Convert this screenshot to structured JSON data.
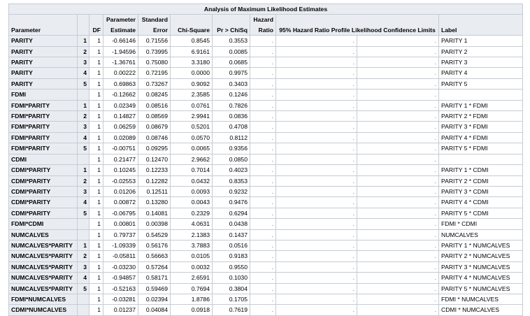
{
  "caption": "Analysis of Maximum Likelihood Estimates",
  "headers": {
    "parameter": "Parameter",
    "class": "",
    "df": "DF",
    "estimate_1": "Parameter",
    "estimate_2": "Estimate",
    "stderr_1": "Standard",
    "stderr_2": "Error",
    "chisq": "Chi-Square",
    "prob": "Pr > ChiSq",
    "hr_1": "Hazard",
    "hr_2": "Ratio",
    "ci": "95% Hazard Ratio Profile Likelihood Confidence Limits",
    "label": "Label"
  },
  "rows": [
    {
      "parameter": "PARITY",
      "cls": "1",
      "df": "1",
      "estimate": "-0.66146",
      "stderr": "0.71556",
      "chisq": "0.8545",
      "prob": "0.3553",
      "hr": ".",
      "lower": ".",
      "upper": ".",
      "label": "PARITY 1"
    },
    {
      "parameter": "PARITY",
      "cls": "2",
      "df": "1",
      "estimate": "-1.94596",
      "stderr": "0.73995",
      "chisq": "6.9161",
      "prob": "0.0085",
      "hr": ".",
      "lower": ".",
      "upper": ".",
      "label": "PARITY 2"
    },
    {
      "parameter": "PARITY",
      "cls": "3",
      "df": "1",
      "estimate": "-1.36761",
      "stderr": "0.75080",
      "chisq": "3.3180",
      "prob": "0.0685",
      "hr": ".",
      "lower": ".",
      "upper": ".",
      "label": "PARITY 3"
    },
    {
      "parameter": "PARITY",
      "cls": "4",
      "df": "1",
      "estimate": "0.00222",
      "stderr": "0.72195",
      "chisq": "0.0000",
      "prob": "0.9975",
      "hr": ".",
      "lower": ".",
      "upper": ".",
      "label": "PARITY 4"
    },
    {
      "parameter": "PARITY",
      "cls": "5",
      "df": "1",
      "estimate": "0.69863",
      "stderr": "0.73267",
      "chisq": "0.9092",
      "prob": "0.3403",
      "hr": ".",
      "lower": ".",
      "upper": ".",
      "label": "PARITY 5"
    },
    {
      "parameter": "FDMI",
      "cls": "",
      "df": "1",
      "estimate": "-0.12662",
      "stderr": "0.08245",
      "chisq": "2.3585",
      "prob": "0.1246",
      "hr": ".",
      "lower": ".",
      "upper": ".",
      "label": ""
    },
    {
      "parameter": "FDMI*PARITY",
      "cls": "1",
      "df": "1",
      "estimate": "0.02349",
      "stderr": "0.08516",
      "chisq": "0.0761",
      "prob": "0.7826",
      "hr": ".",
      "lower": ".",
      "upper": ".",
      "label": "PARITY 1 * FDMI"
    },
    {
      "parameter": "FDMI*PARITY",
      "cls": "2",
      "df": "1",
      "estimate": "0.14827",
      "stderr": "0.08569",
      "chisq": "2.9941",
      "prob": "0.0836",
      "hr": ".",
      "lower": ".",
      "upper": ".",
      "label": "PARITY 2 * FDMI"
    },
    {
      "parameter": "FDMI*PARITY",
      "cls": "3",
      "df": "1",
      "estimate": "0.06259",
      "stderr": "0.08679",
      "chisq": "0.5201",
      "prob": "0.4708",
      "hr": ".",
      "lower": ".",
      "upper": ".",
      "label": "PARITY 3 * FDMI"
    },
    {
      "parameter": "FDMI*PARITY",
      "cls": "4",
      "df": "1",
      "estimate": "0.02089",
      "stderr": "0.08746",
      "chisq": "0.0570",
      "prob": "0.8112",
      "hr": ".",
      "lower": ".",
      "upper": ".",
      "label": "PARITY 4 * FDMI"
    },
    {
      "parameter": "FDMI*PARITY",
      "cls": "5",
      "df": "1",
      "estimate": "-0.00751",
      "stderr": "0.09295",
      "chisq": "0.0065",
      "prob": "0.9356",
      "hr": ".",
      "lower": ".",
      "upper": ".",
      "label": "PARITY 5 * FDMI"
    },
    {
      "parameter": "CDMI",
      "cls": "",
      "df": "1",
      "estimate": "0.21477",
      "stderr": "0.12470",
      "chisq": "2.9662",
      "prob": "0.0850",
      "hr": ".",
      "lower": ".",
      "upper": ".",
      "label": ""
    },
    {
      "parameter": "CDMI*PARITY",
      "cls": "1",
      "df": "1",
      "estimate": "0.10245",
      "stderr": "0.12233",
      "chisq": "0.7014",
      "prob": "0.4023",
      "hr": ".",
      "lower": ".",
      "upper": ".",
      "label": "PARITY 1 * CDMI"
    },
    {
      "parameter": "CDMI*PARITY",
      "cls": "2",
      "df": "1",
      "estimate": "-0.02553",
      "stderr": "0.12282",
      "chisq": "0.0432",
      "prob": "0.8353",
      "hr": ".",
      "lower": ".",
      "upper": ".",
      "label": "PARITY 2 * CDMI"
    },
    {
      "parameter": "CDMI*PARITY",
      "cls": "3",
      "df": "1",
      "estimate": "0.01206",
      "stderr": "0.12511",
      "chisq": "0.0093",
      "prob": "0.9232",
      "hr": ".",
      "lower": ".",
      "upper": ".",
      "label": "PARITY 3 * CDMI"
    },
    {
      "parameter": "CDMI*PARITY",
      "cls": "4",
      "df": "1",
      "estimate": "0.00872",
      "stderr": "0.13280",
      "chisq": "0.0043",
      "prob": "0.9476",
      "hr": ".",
      "lower": ".",
      "upper": ".",
      "label": "PARITY 4 * CDMI"
    },
    {
      "parameter": "CDMI*PARITY",
      "cls": "5",
      "df": "1",
      "estimate": "-0.06795",
      "stderr": "0.14081",
      "chisq": "0.2329",
      "prob": "0.6294",
      "hr": ".",
      "lower": ".",
      "upper": ".",
      "label": "PARITY 5 * CDMI"
    },
    {
      "parameter": "FDMI*CDMI",
      "cls": "",
      "df": "1",
      "estimate": "0.00801",
      "stderr": "0.00398",
      "chisq": "4.0631",
      "prob": "0.0438",
      "hr": ".",
      "lower": ".",
      "upper": ".",
      "label": "FDMI * CDMI"
    },
    {
      "parameter": "NUMCALVES",
      "cls": "",
      "df": "1",
      "estimate": "0.79737",
      "stderr": "0.54529",
      "chisq": "2.1383",
      "prob": "0.1437",
      "hr": ".",
      "lower": ".",
      "upper": ".",
      "label": "NUMCALVES"
    },
    {
      "parameter": "NUMCALVES*PARITY",
      "cls": "1",
      "df": "1",
      "estimate": "-1.09339",
      "stderr": "0.56176",
      "chisq": "3.7883",
      "prob": "0.0516",
      "hr": ".",
      "lower": ".",
      "upper": ".",
      "label": "PARITY 1 * NUMCALVES"
    },
    {
      "parameter": "NUMCALVES*PARITY",
      "cls": "2",
      "df": "1",
      "estimate": "-0.05811",
      "stderr": "0.56663",
      "chisq": "0.0105",
      "prob": "0.9183",
      "hr": ".",
      "lower": ".",
      "upper": ".",
      "label": "PARITY 2 * NUMCALVES"
    },
    {
      "parameter": "NUMCALVES*PARITY",
      "cls": "3",
      "df": "1",
      "estimate": "-0.03230",
      "stderr": "0.57264",
      "chisq": "0.0032",
      "prob": "0.9550",
      "hr": ".",
      "lower": ".",
      "upper": ".",
      "label": "PARITY 3 * NUMCALVES"
    },
    {
      "parameter": "NUMCALVES*PARITY",
      "cls": "4",
      "df": "1",
      "estimate": "-0.94857",
      "stderr": "0.58171",
      "chisq": "2.6591",
      "prob": "0.1030",
      "hr": ".",
      "lower": ".",
      "upper": ".",
      "label": "PARITY 4 * NUMCALVES"
    },
    {
      "parameter": "NUMCALVES*PARITY",
      "cls": "5",
      "df": "1",
      "estimate": "-0.52163",
      "stderr": "0.59469",
      "chisq": "0.7694",
      "prob": "0.3804",
      "hr": ".",
      "lower": ".",
      "upper": ".",
      "label": "PARITY 5 * NUMCALVES"
    },
    {
      "parameter": "FDMI*NUMCALVES",
      "cls": "",
      "df": "1",
      "estimate": "-0.03281",
      "stderr": "0.02394",
      "chisq": "1.8786",
      "prob": "0.1705",
      "hr": ".",
      "lower": ".",
      "upper": ".",
      "label": "FDMI * NUMCALVES"
    },
    {
      "parameter": "CDMI*NUMCALVES",
      "cls": "",
      "df": "1",
      "estimate": "0.01237",
      "stderr": "0.04084",
      "chisq": "0.0918",
      "prob": "0.7619",
      "hr": ".",
      "lower": ".",
      "upper": ".",
      "label": "CDMI * NUMCALVES"
    }
  ],
  "chart_data": {
    "type": "table",
    "title": "Analysis of Maximum Likelihood Estimates",
    "columns": [
      "Parameter",
      "",
      "DF",
      "Parameter Estimate",
      "Standard Error",
      "Chi-Square",
      "Pr > ChiSq",
      "Hazard Ratio",
      "95% Hazard Ratio Profile Likelihood Confidence Limits",
      "",
      "Label"
    ]
  }
}
